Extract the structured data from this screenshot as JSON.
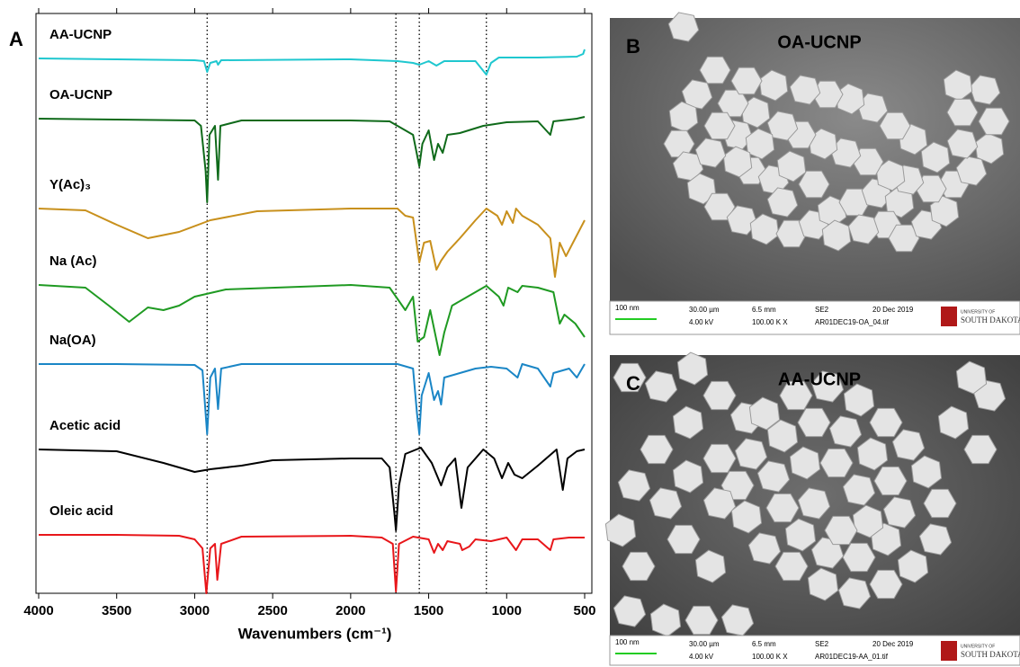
{
  "chart_data": {
    "type": "line",
    "panel_label": "A",
    "x_label": "Wavenumbers (cm⁻¹)",
    "xlim": [
      4000,
      500
    ],
    "xticks": [
      4000,
      3500,
      3000,
      2500,
      2000,
      1500,
      1000,
      500
    ],
    "ylim": [
      0,
      645
    ],
    "reference_lines": [
      2920,
      1710,
      1560,
      1130
    ],
    "series": [
      {
        "name": "AA-UCNP",
        "color": "#1fc7cf",
        "x": [
          4000,
          3500,
          3000,
          2940,
          2920,
          2900,
          2860,
          2850,
          2830,
          2000,
          1700,
          1600,
          1560,
          1500,
          1450,
          1400,
          1200,
          1130,
          1100,
          1050,
          800,
          550,
          510,
          500
        ],
        "values": [
          595,
          594,
          593,
          592,
          580,
          590,
          592,
          588,
          593,
          594,
          592,
          590,
          588,
          592,
          587,
          592,
          592,
          577,
          590,
          596,
          596,
          597,
          600,
          605
        ]
      },
      {
        "name": "OA-UCNP",
        "color": "#0f6a1a",
        "x": [
          4000,
          3500,
          3000,
          2960,
          2930,
          2920,
          2905,
          2870,
          2850,
          2835,
          2700,
          2000,
          1750,
          1700,
          1650,
          1600,
          1560,
          1540,
          1500,
          1465,
          1440,
          1410,
          1380,
          1300,
          1150,
          1000,
          800,
          720,
          700,
          550,
          500
        ],
        "values": [
          528,
          527,
          526,
          520,
          470,
          435,
          510,
          520,
          460,
          520,
          526,
          526,
          525,
          520,
          515,
          510,
          475,
          500,
          515,
          482,
          500,
          490,
          510,
          512,
          520,
          524,
          525,
          510,
          525,
          528,
          530
        ]
      },
      {
        "name": "Y(Ac)₃",
        "color": "#c8901c",
        "x": [
          4000,
          3700,
          3500,
          3300,
          3100,
          2900,
          2600,
          2000,
          1750,
          1700,
          1650,
          1600,
          1560,
          1530,
          1490,
          1450,
          1420,
          1380,
          1300,
          1200,
          1130,
          1060,
          1030,
          1000,
          960,
          940,
          900,
          800,
          720,
          690,
          660,
          620,
          560,
          500
        ],
        "values": [
          428,
          426,
          410,
          395,
          402,
          415,
          425,
          428,
          428,
          428,
          420,
          418,
          368,
          390,
          392,
          360,
          370,
          380,
          395,
          415,
          428,
          420,
          410,
          425,
          412,
          428,
          420,
          410,
          395,
          352,
          390,
          375,
          395,
          415
        ]
      },
      {
        "name": "Na (Ac)",
        "color": "#1f9a22",
        "x": [
          4000,
          3700,
          3550,
          3420,
          3300,
          3200,
          3100,
          3000,
          2800,
          2000,
          1750,
          1710,
          1650,
          1600,
          1570,
          1530,
          1490,
          1430,
          1400,
          1350,
          1250,
          1130,
          1050,
          1020,
          990,
          930,
          900,
          800,
          700,
          660,
          630,
          560,
          500
        ],
        "values": [
          343,
          340,
          320,
          302,
          318,
          315,
          320,
          330,
          338,
          343,
          340,
          330,
          315,
          330,
          280,
          285,
          315,
          265,
          290,
          320,
          330,
          342,
          330,
          320,
          340,
          335,
          342,
          340,
          335,
          300,
          310,
          300,
          285
        ]
      },
      {
        "name": "Na(OA)",
        "color": "#1a86c6",
        "x": [
          4000,
          3500,
          3000,
          2950,
          2920,
          2900,
          2870,
          2850,
          2830,
          2700,
          2000,
          1700,
          1600,
          1575,
          1560,
          1545,
          1500,
          1465,
          1440,
          1420,
          1400,
          1300,
          1200,
          1100,
          1000,
          930,
          900,
          800,
          720,
          700,
          600,
          550,
          500
        ],
        "values": [
          255,
          255,
          254,
          248,
          177,
          240,
          250,
          205,
          250,
          255,
          255,
          255,
          250,
          200,
          177,
          220,
          245,
          215,
          225,
          210,
          240,
          245,
          250,
          252,
          250,
          240,
          255,
          250,
          230,
          245,
          250,
          240,
          255
        ]
      },
      {
        "name": "Acetic acid",
        "color": "#000000",
        "x": [
          4000,
          3500,
          3200,
          3000,
          2900,
          2700,
          2500,
          2000,
          1800,
          1750,
          1720,
          1710,
          1690,
          1650,
          1550,
          1480,
          1420,
          1380,
          1330,
          1290,
          1250,
          1150,
          1080,
          1030,
          990,
          950,
          900,
          800,
          680,
          640,
          610,
          550,
          500
        ],
        "values": [
          160,
          158,
          145,
          135,
          138,
          142,
          148,
          150,
          150,
          140,
          90,
          70,
          120,
          155,
          162,
          145,
          120,
          140,
          150,
          95,
          140,
          160,
          150,
          128,
          145,
          132,
          128,
          142,
          160,
          115,
          150,
          158,
          160
        ]
      },
      {
        "name": "Oleic acid",
        "color": "#e8161a",
        "x": [
          4000,
          3500,
          3100,
          3000,
          2950,
          2925,
          2900,
          2870,
          2855,
          2830,
          2700,
          2000,
          1800,
          1730,
          1710,
          1690,
          1600,
          1500,
          1465,
          1440,
          1410,
          1380,
          1300,
          1285,
          1240,
          1200,
          1100,
          1000,
          940,
          900,
          800,
          720,
          700,
          600,
          500
        ],
        "values": [
          65,
          65,
          64,
          60,
          50,
          0,
          50,
          55,
          15,
          55,
          63,
          64,
          62,
          55,
          2,
          55,
          63,
          60,
          45,
          55,
          48,
          58,
          55,
          48,
          52,
          60,
          58,
          62,
          48,
          60,
          60,
          48,
          60,
          62,
          62
        ]
      }
    ]
  },
  "sem_images": [
    {
      "panel_label": "B",
      "title": "OA-UCNP",
      "scale_bar": "100 nm",
      "fields": [
        "30.00 µm",
        "6.5 mm",
        "SE2",
        "20 Dec 2019",
        "4.00 kV",
        "100.00 K X",
        "AR01DEC19-OA_04.tif"
      ],
      "logo": "SOUTH DAKOTA",
      "logo_small": "UNIVERSITY OF"
    },
    {
      "panel_label": "C",
      "title": "AA-UCNP",
      "scale_bar": "100 nm",
      "fields": [
        "30.00 µm",
        "6.5 mm",
        "SE2",
        "20 Dec 2019",
        "4.00 kV",
        "100.00 K X",
        "AR01DEC19-AA_01.tif"
      ],
      "logo": "SOUTH DAKOTA",
      "logo_small": "UNIVERSITY OF"
    }
  ]
}
